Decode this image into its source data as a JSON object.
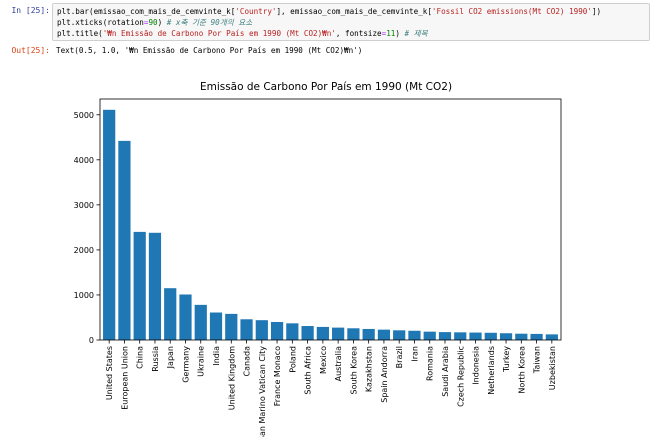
{
  "cell_in": {
    "prompt": "In [25]:",
    "lines": [
      [
        [
          "plt.bar(emissao_com_mais_de_cemvinte_k[",
          ""
        ],
        [
          "'Country'",
          "str"
        ],
        [
          "], emissao_com_mais_de_cemvinte_k[",
          ""
        ],
        [
          "'Fossil CO2 emissions(Mt CO2) 1990'",
          "str"
        ],
        [
          "])",
          ""
        ]
      ],
      [
        [
          "plt.xticks(rotation",
          ""
        ],
        [
          "=",
          "op"
        ],
        [
          "90",
          "num"
        ],
        [
          ") ",
          ""
        ],
        [
          "# x축 기준 90개의 요소",
          "cmt"
        ]
      ],
      [
        [
          "plt.title(",
          ""
        ],
        [
          "'₩n Emissão de Carbono Por País em 1990 (Mt CO2)₩n'",
          "str"
        ],
        [
          ", fontsize",
          ""
        ],
        [
          "=",
          "op"
        ],
        [
          "11",
          "num"
        ],
        [
          ") ",
          ""
        ],
        [
          "# 제목",
          "cmt"
        ]
      ]
    ]
  },
  "cell_out": {
    "prompt": "Out[25]:",
    "text": "Text(0.5, 1.0, '₩n Emissão de Carbono Por País em 1990 (Mt CO2)₩n')"
  },
  "chart_data": {
    "type": "bar",
    "title": "Emissão de Carbono Por País em 1990 (Mt CO2)",
    "xlabel": "",
    "ylabel": "",
    "ylim": [
      0,
      5350
    ],
    "yticks": [
      0,
      1000,
      2000,
      3000,
      4000,
      5000
    ],
    "color": "#1f77b4",
    "grid": false,
    "categories": [
      "United States",
      "European Union",
      "China",
      "Russia",
      "Japan",
      "Germany",
      "Ukraine",
      "India",
      "United Kingdom",
      "Canada",
      "San Marino Vatican City",
      "France Monaco",
      "Poland",
      "South Africa",
      "Mexico",
      "Australia",
      "South Korea",
      "Kazakhstan",
      "Spain Andorra",
      "Brazil",
      "Iran",
      "Romania",
      "Saudi Arabia",
      "Czech Republic",
      "Indonesia",
      "Netherlands",
      "Turkey",
      "North Korea",
      "Taiwan",
      "Uzbekistan"
    ],
    "values": [
      5110,
      4420,
      2400,
      2380,
      1150,
      1010,
      780,
      610,
      580,
      460,
      440,
      400,
      370,
      310,
      290,
      275,
      260,
      245,
      230,
      215,
      205,
      185,
      175,
      170,
      165,
      160,
      150,
      140,
      135,
      125
    ]
  }
}
